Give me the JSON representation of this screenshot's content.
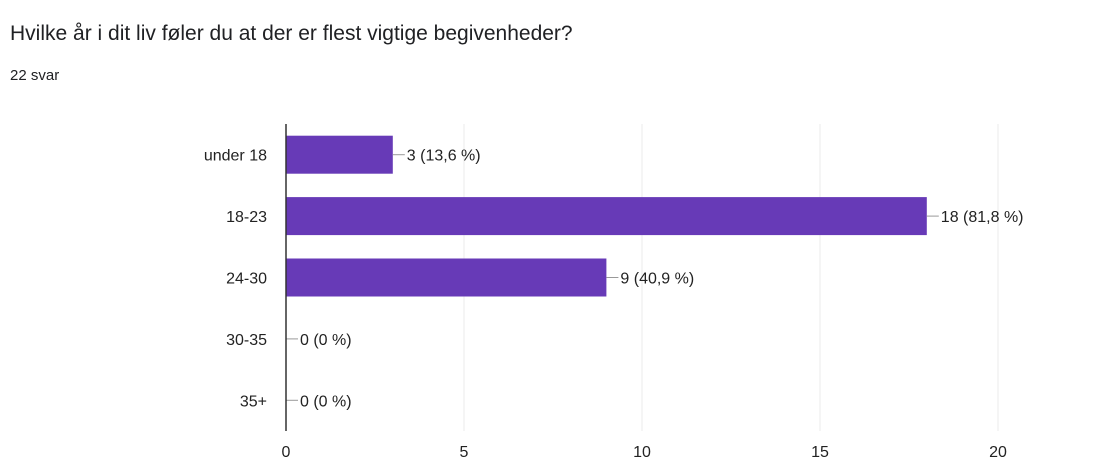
{
  "question": {
    "title": "Hvilke år i dit liv føler du at der er flest vigtige begivenheder?",
    "responses": "22 svar"
  },
  "colors": {
    "bar": "#673ab7",
    "axis": "#333333",
    "grid": "#ebebeb",
    "label": "#222222",
    "connector": "#999999"
  },
  "chart_data": {
    "type": "bar",
    "orientation": "horizontal",
    "title": "",
    "xlabel": "",
    "ylabel": "",
    "categories": [
      "under 18",
      "18-23",
      "24-30",
      "30-35",
      "35+"
    ],
    "values": [
      3,
      18,
      9,
      0,
      0
    ],
    "data_labels": [
      "3 (13,6 %)",
      "18 (81,8 %)",
      "9 (40,9 %)",
      "0 (0 %)",
      "0 (0 %)"
    ],
    "xlim": [
      0,
      20
    ],
    "xticks": [
      0,
      5,
      10,
      15,
      20
    ],
    "grid": true,
    "legend": "none"
  }
}
